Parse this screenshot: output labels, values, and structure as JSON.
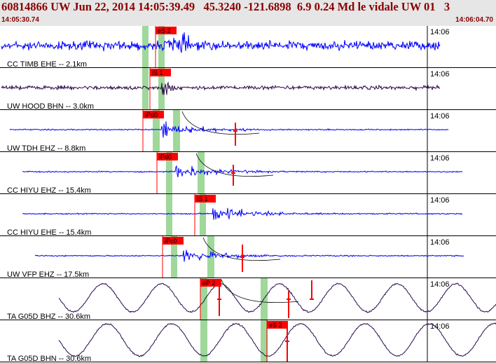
{
  "header": {
    "title": "60814866 UW Jun 22, 2014 14:05:39.49   45.3240 -121.6898  6.9 0.24 Md le vidale UW 01   3",
    "start_time": "14:05:30.74",
    "end_time": "14:06:04.70"
  },
  "colors": {
    "header_bg": "#e6e6e6",
    "header_text": "#8b0000",
    "trace_blue": "#0000ff",
    "trace_dark": "#2a0a4a",
    "pick_red": "#ff0000",
    "window_green": "#9fd89a"
  },
  "panels": [
    {
      "label": "CC TIMB EHE -- 2.1km",
      "tick_label": "14:06",
      "trace_color": "#0000ff",
      "trace_style": "noise",
      "picks": [
        {
          "label": "eS 2"
        }
      ]
    },
    {
      "label": "UW HOOD BHN -- 3.0km",
      "tick_label": "14:06",
      "trace_color": "#2a0a4a",
      "trace_style": "noise",
      "picks": [
        {
          "label": "iS 1"
        }
      ]
    },
    {
      "label": "UW TDH EHZ -- 8.8km",
      "tick_label": "14:06",
      "trace_color": "#0000ff",
      "trace_style": "event",
      "picks": [
        {
          "label": "iPd0"
        }
      ]
    },
    {
      "label": "CC HIYU EHZ -- 15.4km",
      "tick_label": "14:06",
      "trace_color": "#0000ff",
      "trace_style": "event",
      "picks": [
        {
          "label": "iPd0"
        }
      ]
    },
    {
      "label": "CC HIYU EHE -- 15.4km",
      "tick_label": "14:06",
      "trace_color": "#0000ff",
      "trace_style": "event",
      "picks": [
        {
          "label": "iS 1"
        }
      ]
    },
    {
      "label": "UW VFP EHZ -- 17.5km",
      "tick_label": "14:06",
      "trace_color": "#0000ff",
      "trace_style": "event",
      "picks": [
        {
          "label": "iPc0"
        }
      ]
    },
    {
      "label": "TA G05D BHZ -- 30.6km",
      "tick_label": "14:06",
      "trace_color": "#2a0a4a",
      "trace_style": "wave",
      "picks": [
        {
          "label": "eP 2"
        }
      ]
    },
    {
      "label": "TA G05D BHN -- 30.6km",
      "tick_label": "14:06",
      "trace_color": "#2a0a4a",
      "trace_style": "wave",
      "picks": [
        {
          "label": "eS 2"
        }
      ]
    }
  ]
}
